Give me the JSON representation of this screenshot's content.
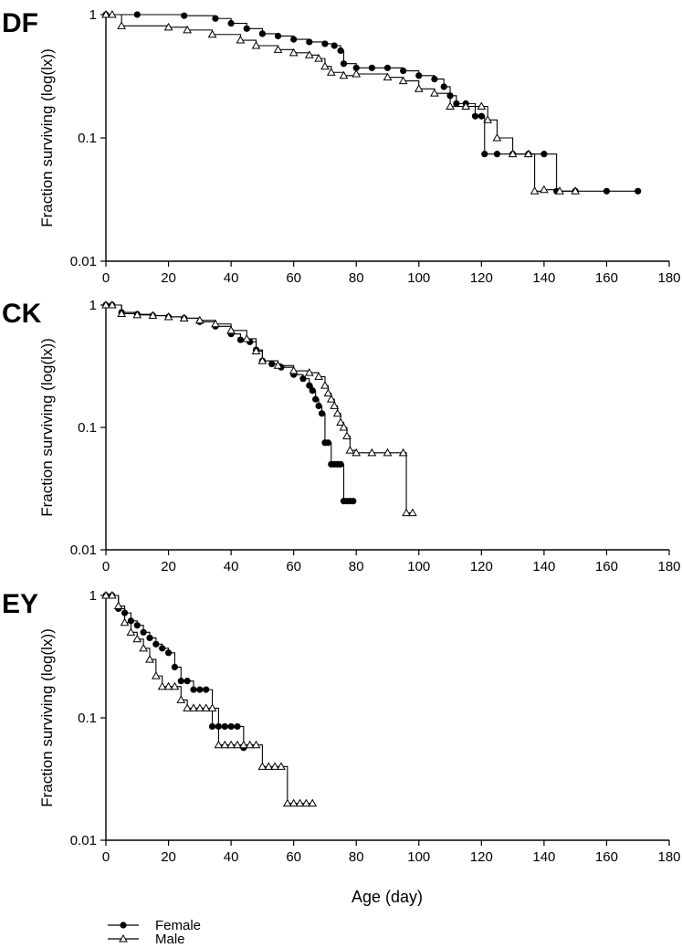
{
  "figure": {
    "x_axis_label": "Age (day)",
    "y_axis_label": "Fraction surviving (log(lx))",
    "legend": {
      "placement": "bottom-left",
      "entries": [
        {
          "name": "Female",
          "marker": "filled-circle",
          "color": "#000000"
        },
        {
          "name": "Male",
          "marker": "open-triangle",
          "color": "#000000"
        }
      ]
    }
  },
  "chart_data": [
    {
      "type": "line",
      "panel": "DF",
      "xlim": [
        0,
        180
      ],
      "ylim": [
        0.01,
        1
      ],
      "yscale": "log",
      "grid": false,
      "x_ticks": [
        0,
        20,
        40,
        60,
        80,
        100,
        120,
        140,
        160,
        180
      ],
      "y_ticks": [
        0.01,
        0.1,
        1
      ],
      "y_tick_labels": [
        "0.01",
        "0.1",
        "1"
      ],
      "series": [
        {
          "name": "Female",
          "marker": "filled-circle",
          "x": [
            0,
            10,
            25,
            35,
            40,
            45,
            50,
            55,
            60,
            65,
            70,
            73,
            75,
            76,
            80,
            85,
            90,
            95,
            100,
            105,
            108,
            110,
            112,
            115,
            118,
            120,
            121,
            125,
            130,
            135,
            140,
            144,
            150,
            160,
            170
          ],
          "y": [
            1,
            1,
            0.98,
            0.93,
            0.85,
            0.77,
            0.7,
            0.67,
            0.63,
            0.6,
            0.58,
            0.56,
            0.51,
            0.4,
            0.37,
            0.37,
            0.37,
            0.35,
            0.32,
            0.3,
            0.26,
            0.22,
            0.19,
            0.19,
            0.15,
            0.15,
            0.074,
            0.074,
            0.074,
            0.074,
            0.074,
            0.037,
            0.037,
            0.037,
            0.037
          ]
        },
        {
          "name": "Male",
          "marker": "open-triangle",
          "x": [
            0,
            2,
            5,
            20,
            26,
            34,
            43,
            48,
            55,
            60,
            65,
            68,
            70,
            72,
            76,
            80,
            90,
            95,
            100,
            105,
            110,
            115,
            120,
            122,
            125,
            130,
            135,
            137,
            140,
            145,
            150
          ],
          "y": [
            1,
            1,
            0.81,
            0.79,
            0.75,
            0.69,
            0.62,
            0.56,
            0.52,
            0.49,
            0.47,
            0.44,
            0.38,
            0.34,
            0.32,
            0.33,
            0.31,
            0.29,
            0.25,
            0.23,
            0.18,
            0.18,
            0.18,
            0.14,
            0.1,
            0.074,
            0.074,
            0.037,
            0.038,
            0.037,
            0.037
          ]
        }
      ]
    },
    {
      "type": "line",
      "panel": "CK",
      "xlim": [
        0,
        180
      ],
      "ylim": [
        0.01,
        1
      ],
      "yscale": "log",
      "grid": false,
      "x_ticks": [
        0,
        20,
        40,
        60,
        80,
        100,
        120,
        140,
        160,
        180
      ],
      "y_ticks": [
        0.01,
        0.1,
        1
      ],
      "y_tick_labels": [
        "0.01",
        "0.1",
        "1"
      ],
      "series": [
        {
          "name": "Female",
          "marker": "filled-circle",
          "x": [
            0,
            2,
            5,
            10,
            15,
            20,
            25,
            30,
            35,
            40,
            43,
            46,
            48,
            50,
            53,
            56,
            60,
            63,
            65,
            66,
            67,
            68,
            69,
            70,
            71,
            72,
            73,
            74,
            75,
            76,
            77,
            78,
            79
          ],
          "y": [
            1,
            1,
            0.87,
            0.84,
            0.82,
            0.8,
            0.78,
            0.73,
            0.67,
            0.58,
            0.52,
            0.5,
            0.43,
            0.35,
            0.33,
            0.31,
            0.27,
            0.25,
            0.22,
            0.2,
            0.17,
            0.15,
            0.13,
            0.075,
            0.075,
            0.05,
            0.05,
            0.05,
            0.05,
            0.025,
            0.025,
            0.025,
            0.025
          ]
        },
        {
          "name": "Male",
          "marker": "open-triangle",
          "x": [
            0,
            2,
            5,
            10,
            15,
            20,
            25,
            30,
            35,
            40,
            45,
            48,
            50,
            55,
            60,
            65,
            68,
            70,
            71,
            72,
            73,
            74,
            75,
            76,
            77,
            78,
            80,
            85,
            90,
            95,
            96,
            98
          ],
          "y": [
            1,
            1,
            0.85,
            0.83,
            0.82,
            0.8,
            0.78,
            0.75,
            0.7,
            0.62,
            0.53,
            0.42,
            0.35,
            0.32,
            0.29,
            0.28,
            0.26,
            0.22,
            0.19,
            0.17,
            0.15,
            0.13,
            0.11,
            0.1,
            0.085,
            0.065,
            0.062,
            0.062,
            0.062,
            0.062,
            0.02,
            0.02
          ]
        }
      ]
    },
    {
      "type": "line",
      "panel": "EY",
      "xlim": [
        0,
        180
      ],
      "ylim": [
        0.01,
        1
      ],
      "yscale": "log",
      "grid": false,
      "x_ticks": [
        0,
        20,
        40,
        60,
        80,
        100,
        120,
        140,
        160,
        180
      ],
      "y_ticks": [
        0.01,
        0.1,
        1
      ],
      "y_tick_labels": [
        "0.01",
        "0.1",
        "1"
      ],
      "series": [
        {
          "name": "Female",
          "marker": "filled-circle",
          "x": [
            0,
            2,
            4,
            6,
            8,
            10,
            12,
            14,
            16,
            18,
            20,
            22,
            24,
            26,
            28,
            30,
            32,
            34,
            36,
            38,
            40,
            42,
            44
          ],
          "y": [
            1,
            1,
            0.78,
            0.72,
            0.62,
            0.57,
            0.5,
            0.45,
            0.4,
            0.37,
            0.34,
            0.26,
            0.2,
            0.2,
            0.17,
            0.17,
            0.17,
            0.085,
            0.085,
            0.085,
            0.085,
            0.085,
            0.057
          ]
        },
        {
          "name": "Male",
          "marker": "open-triangle",
          "x": [
            0,
            2,
            4,
            6,
            8,
            10,
            12,
            14,
            16,
            18,
            20,
            22,
            24,
            26,
            28,
            30,
            32,
            34,
            36,
            38,
            40,
            42,
            44,
            46,
            48,
            50,
            52,
            54,
            56,
            58,
            60,
            62,
            64,
            66
          ],
          "y": [
            1,
            1,
            0.82,
            0.6,
            0.5,
            0.44,
            0.37,
            0.3,
            0.22,
            0.18,
            0.18,
            0.18,
            0.14,
            0.12,
            0.12,
            0.12,
            0.12,
            0.12,
            0.06,
            0.06,
            0.06,
            0.06,
            0.06,
            0.06,
            0.06,
            0.04,
            0.04,
            0.04,
            0.04,
            0.02,
            0.02,
            0.02,
            0.02,
            0.02
          ]
        }
      ]
    }
  ]
}
